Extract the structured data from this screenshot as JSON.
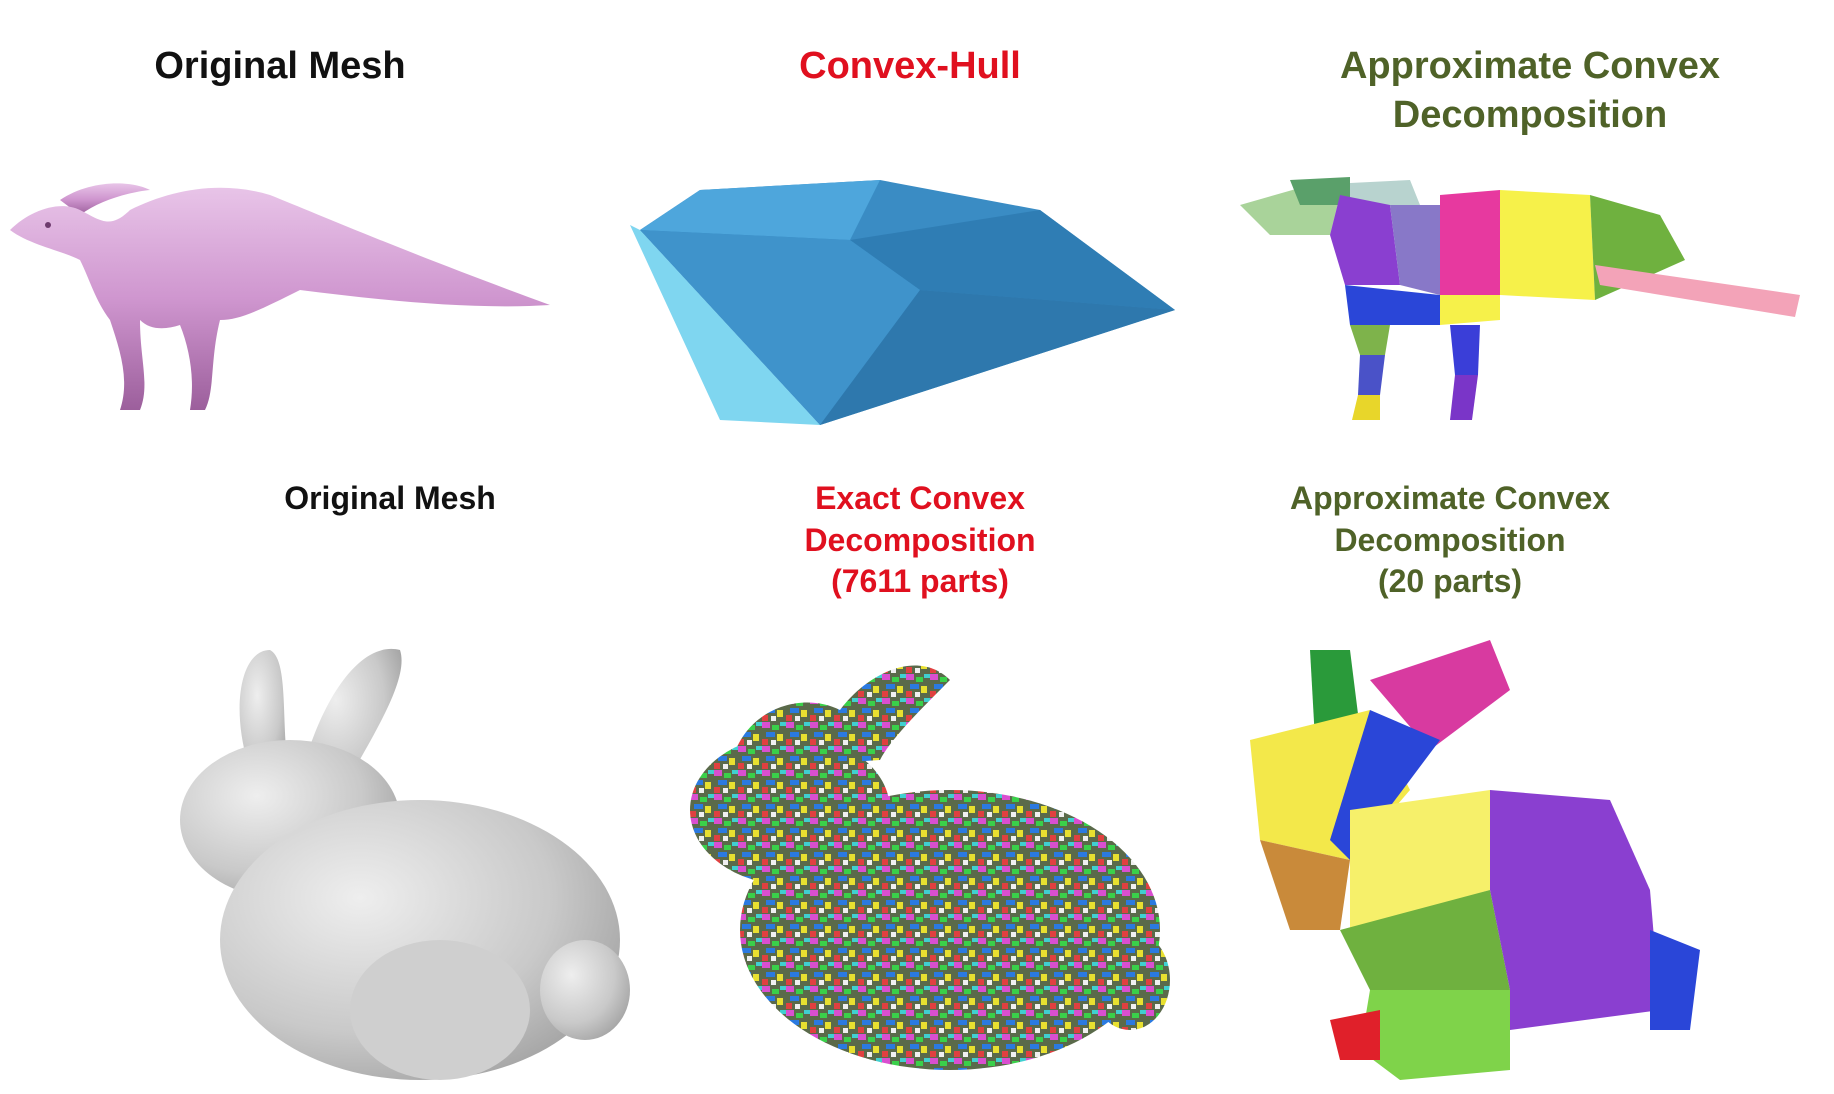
{
  "row1": {
    "col1_title": "Original Mesh",
    "col2_title": "Convex-Hull",
    "col3_title_line1": "Approximate Convex",
    "col3_title_line2": "Decomposition"
  },
  "row2": {
    "col1_title": "Original Mesh",
    "col2_title_line1": "Exact Convex",
    "col2_title_line2": "Decomposition",
    "col2_title_line3": "(7611 parts)",
    "col3_title_line1": "Approximate Convex",
    "col3_title_line2": "Decomposition",
    "col3_title_line3": "(20 parts)"
  },
  "colors": {
    "black_label": "#111111",
    "red_label": "#e0101f",
    "green_label": "#4f6228",
    "dino_mesh": "#d9a3d9",
    "hull_blue": "#3a8cc4",
    "bunny_gray": "#d4d4d4"
  }
}
